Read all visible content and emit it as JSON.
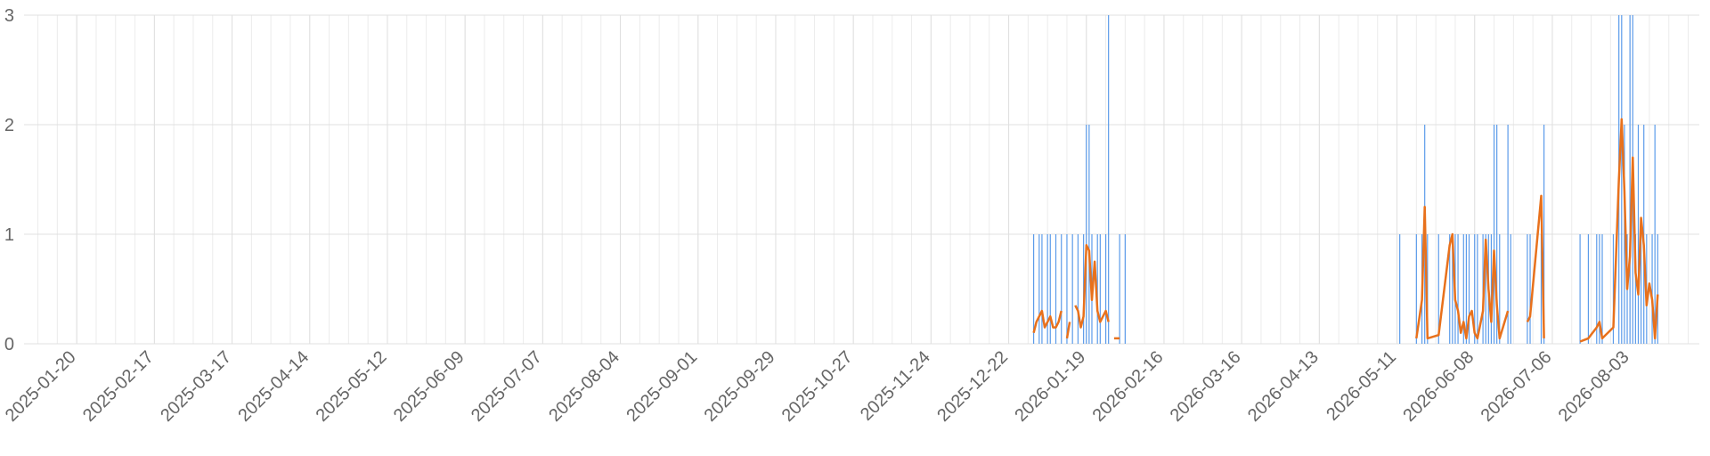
{
  "chart_data": {
    "type": "line",
    "xlim": [
      "2025-01-01",
      "2026-08-28"
    ],
    "xticks": [
      "2025-01-20",
      "2025-02-17",
      "2025-03-17",
      "2025-04-14",
      "2025-05-12",
      "2025-06-09",
      "2025-07-07",
      "2025-08-04",
      "2025-09-01",
      "2025-09-29",
      "2025-10-27",
      "2025-11-24",
      "2025-12-22",
      "2026-01-19",
      "2026-02-16",
      "2026-03-16",
      "2026-04-13",
      "2026-05-11",
      "2026-06-08",
      "2026-07-06",
      "2026-08-03"
    ],
    "xgrid_interval_days": 7,
    "ylim": [
      0,
      3
    ],
    "yticks": [
      0,
      1,
      2,
      3
    ],
    "grid": true,
    "x": [
      "2025-12-31",
      "2026-01-01",
      "2026-01-02",
      "2026-01-03",
      "2026-01-04",
      "2026-01-05",
      "2026-01-06",
      "2026-01-07",
      "2026-01-08",
      "2026-01-09",
      "2026-01-10",
      "2026-01-11",
      "2026-01-12",
      "2026-01-13",
      "2026-01-14",
      "2026-01-15",
      "2026-01-16",
      "2026-01-17",
      "2026-01-18",
      "2026-01-19",
      "2026-01-20",
      "2026-01-21",
      "2026-01-22",
      "2026-01-23",
      "2026-01-24",
      "2026-01-25",
      "2026-01-26",
      "2026-01-27",
      "2026-01-28",
      "2026-01-29",
      "2026-01-31",
      "2026-02-01",
      "2026-02-02",
      "2026-05-12",
      "2026-05-13",
      "2026-05-18",
      "2026-05-20",
      "2026-05-21",
      "2026-05-22",
      "2026-05-26",
      "2026-05-30",
      "2026-05-31",
      "2026-06-01",
      "2026-06-02",
      "2026-06-03",
      "2026-06-04",
      "2026-06-05",
      "2026-06-06",
      "2026-06-07",
      "2026-06-08",
      "2026-06-09",
      "2026-06-11",
      "2026-06-12",
      "2026-06-13",
      "2026-06-14",
      "2026-06-15",
      "2026-06-16",
      "2026-06-17",
      "2026-06-20",
      "2026-06-21",
      "2026-06-27",
      "2026-06-28",
      "2026-07-02",
      "2026-07-03",
      "2026-07-04",
      "2026-07-16",
      "2026-07-19",
      "2026-07-22",
      "2026-07-23",
      "2026-07-24",
      "2026-07-28",
      "2026-07-30",
      "2026-07-31",
      "2026-08-01",
      "2026-08-02",
      "2026-08-03",
      "2026-08-04",
      "2026-08-05",
      "2026-08-06",
      "2026-08-07",
      "2026-08-08",
      "2026-08-09",
      "2026-08-10",
      "2026-08-11",
      "2026-08-12",
      "2026-08-13"
    ],
    "series": [
      {
        "color": "#5b9bea",
        "style": "spike",
        "values": [
          1,
          0,
          1,
          1,
          0,
          1,
          1,
          0,
          1,
          0,
          1,
          0,
          1,
          0,
          1,
          0,
          1,
          0,
          1,
          2,
          2,
          1,
          0,
          1,
          1,
          0,
          1,
          3,
          0,
          0,
          1,
          0,
          1,
          1,
          0,
          1,
          1,
          2,
          1,
          1,
          1,
          1,
          1,
          1,
          0,
          1,
          1,
          1,
          0,
          1,
          1,
          1,
          1,
          1,
          1,
          2,
          2,
          1,
          2,
          1,
          1,
          1,
          1,
          2,
          0,
          1,
          1,
          1,
          1,
          1,
          1,
          3,
          3,
          2,
          1,
          3,
          3,
          1,
          2,
          1,
          2,
          1,
          0,
          1,
          2,
          1
        ]
      },
      {
        "color": "#e8711c",
        "style": "line",
        "values": [
          0.1,
          0.2,
          0.25,
          0.3,
          0.15,
          0.2,
          0.25,
          0.15,
          0.15,
          0.2,
          0.3,
          null,
          0.05,
          0.2,
          null,
          0.35,
          0.3,
          0.15,
          0.25,
          0.9,
          0.85,
          0.4,
          0.75,
          0.3,
          0.2,
          0.25,
          0.3,
          0.2,
          null,
          0.05,
          0.05,
          null,
          null,
          0.08,
          null,
          0.05,
          0.4,
          1.25,
          0.05,
          0.08,
          0.9,
          1.0,
          0.4,
          0.3,
          0.1,
          0.2,
          0.05,
          0.25,
          0.3,
          0.1,
          0.05,
          0.3,
          0.95,
          0.5,
          0.2,
          0.85,
          0.35,
          0.05,
          0.3,
          null,
          0.2,
          0.25,
          1.35,
          0.05,
          null,
          0.02,
          0.05,
          0.15,
          0.2,
          0.05,
          0.15,
          1.5,
          2.05,
          1.4,
          0.5,
          0.8,
          1.7,
          0.65,
          0.45,
          1.15,
          0.9,
          0.35,
          0.55,
          0.4,
          0.05,
          0.45
        ]
      }
    ]
  }
}
